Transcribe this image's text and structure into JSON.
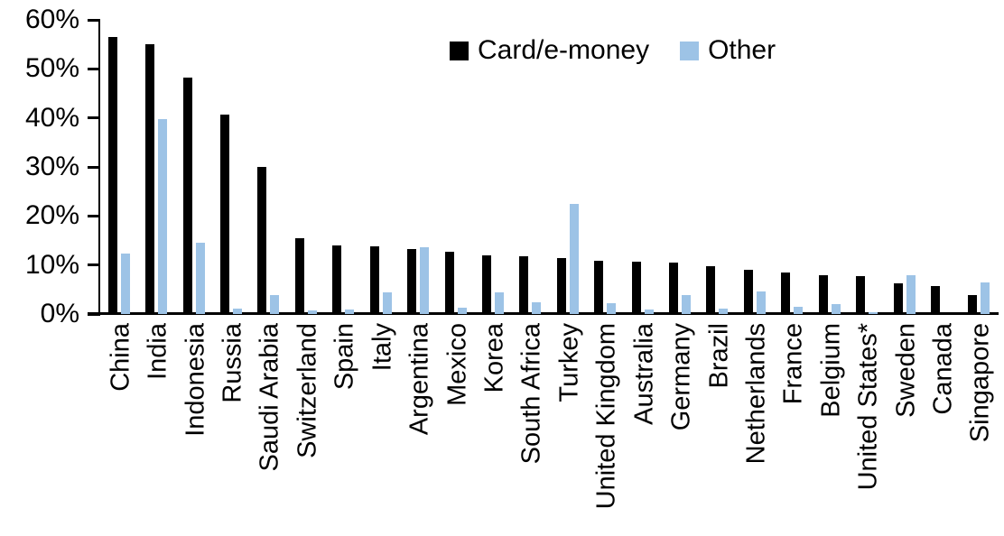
{
  "chart_data": {
    "type": "bar",
    "title": "",
    "xlabel": "",
    "ylabel": "",
    "ylim": [
      0,
      60
    ],
    "ytick_step": 10,
    "ytick_labels": [
      "0%",
      "10%",
      "20%",
      "30%",
      "40%",
      "50%",
      "60%"
    ],
    "grid": false,
    "legend_position": "top-center",
    "categories": [
      "China",
      "India",
      "Indonesia",
      "Russia",
      "Saudi Arabia",
      "Switzerland",
      "Spain",
      "Italy",
      "Argentina",
      "Mexico",
      "Korea",
      "South Africa",
      "Turkey",
      "United Kingdom",
      "Australia",
      "Germany",
      "Brazil",
      "Netherlands",
      "France",
      "Belgium",
      "United States*",
      "Sweden",
      "Canada",
      "Singapore"
    ],
    "series": [
      {
        "name": "Card/e-money",
        "color": "#000000",
        "values": [
          56.5,
          55.0,
          48.3,
          40.6,
          30.0,
          15.5,
          14.0,
          13.9,
          13.2,
          12.8,
          12.0,
          11.7,
          11.4,
          10.9,
          10.7,
          10.5,
          9.8,
          9.1,
          8.5,
          8.0,
          7.7,
          6.3,
          5.8,
          3.8
        ]
      },
      {
        "name": "Other",
        "color": "#9DC3E6",
        "values": [
          12.4,
          39.7,
          14.6,
          1.1,
          3.8,
          0.7,
          0.9,
          4.4,
          13.7,
          1.3,
          4.4,
          2.4,
          22.4,
          2.3,
          0.9,
          3.8,
          1.2,
          4.6,
          1.5,
          2.0,
          0.3,
          8.0,
          0.0,
          6.5
        ]
      }
    ]
  }
}
